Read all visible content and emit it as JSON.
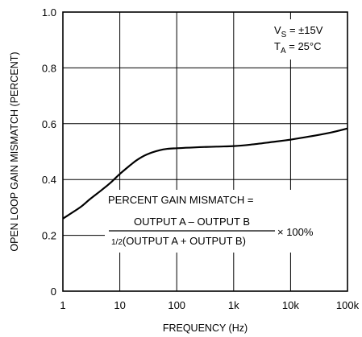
{
  "chart_data": {
    "type": "line",
    "title": "",
    "xlabel": "FREQUENCY (Hz)",
    "ylabel": "OPEN LOOP GAIN MISMATCH (PERCENT)",
    "x_scale": "log",
    "xlim": [
      1,
      100000
    ],
    "ylim": [
      0,
      1.0
    ],
    "grid": true,
    "x_ticks": [
      1,
      10,
      100,
      1000,
      10000,
      100000
    ],
    "x_tick_labels": [
      "1",
      "10",
      "100",
      "1k",
      "10k",
      "100k"
    ],
    "y_ticks": [
      0,
      0.2,
      0.4,
      0.6,
      0.8,
      1.0
    ],
    "y_tick_labels": [
      "0",
      "0.2",
      "0.4",
      "0.6",
      "0.8",
      "1.0"
    ],
    "series": [
      {
        "x": [
          1,
          2,
          3,
          5,
          7,
          10,
          15,
          20,
          30,
          50,
          70,
          100,
          200,
          500,
          1000,
          2000,
          5000,
          10000,
          20000,
          50000,
          100000
        ],
        "y": [
          0.26,
          0.3,
          0.33,
          0.365,
          0.39,
          0.42,
          0.45,
          0.47,
          0.49,
          0.505,
          0.51,
          0.512,
          0.515,
          0.518,
          0.52,
          0.525,
          0.535,
          0.543,
          0.553,
          0.568,
          0.583
        ]
      }
    ],
    "annotations": {
      "conditions": {
        "vs_main": "V",
        "vs_sub": "S",
        "vs_value": " = ±15V",
        "ta_main": "T",
        "ta_sub": "A",
        "ta_value": " = 25°C"
      },
      "formula": {
        "heading": "PERCENT GAIN MISMATCH =",
        "numerator": "OUTPUT A – OUTPUT B",
        "denominator_frac": "1/2",
        "denominator_text": "(OUTPUT A + OUTPUT B)",
        "multiplier": "× 100%"
      }
    },
    "line_color": "#000000",
    "grid_color": "#000000"
  }
}
